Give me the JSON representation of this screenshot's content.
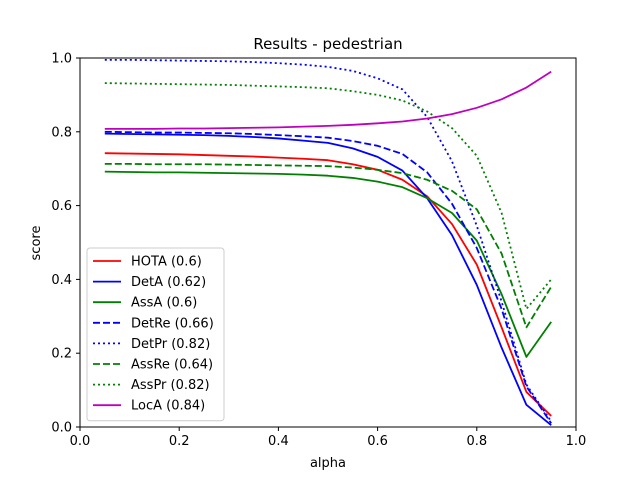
{
  "chart_data": {
    "type": "line",
    "title": "Results - pedestrian",
    "xlabel": "alpha",
    "ylabel": "score",
    "xlim": [
      0.0,
      1.0
    ],
    "ylim": [
      0.0,
      1.0
    ],
    "xticks": [
      0.0,
      0.2,
      0.4,
      0.6,
      0.8,
      1.0
    ],
    "yticks": [
      0.0,
      0.2,
      0.4,
      0.6,
      0.8,
      1.0
    ],
    "xtick_labels": [
      "0.0",
      "0.2",
      "0.4",
      "0.6",
      "0.8",
      "1.0"
    ],
    "ytick_labels": [
      "0.0",
      "0.2",
      "0.4",
      "0.6",
      "0.8",
      "1.0"
    ],
    "grid": false,
    "legend_position": "lower-left",
    "x": [
      0.05,
      0.1,
      0.15,
      0.2,
      0.25,
      0.3,
      0.35,
      0.4,
      0.45,
      0.5,
      0.55,
      0.6,
      0.65,
      0.7,
      0.75,
      0.8,
      0.85,
      0.9,
      0.95
    ],
    "series": [
      {
        "name": "HOTA (0.6)",
        "color": "#ff0000",
        "dash": "solid",
        "values": [
          0.742,
          0.741,
          0.74,
          0.739,
          0.737,
          0.735,
          0.733,
          0.73,
          0.727,
          0.723,
          0.712,
          0.697,
          0.67,
          0.625,
          0.55,
          0.44,
          0.27,
          0.095,
          0.03
        ]
      },
      {
        "name": "DetA (0.62)",
        "color": "#0000ff",
        "dash": "solid",
        "values": [
          0.795,
          0.794,
          0.793,
          0.792,
          0.791,
          0.789,
          0.786,
          0.782,
          0.776,
          0.77,
          0.755,
          0.732,
          0.695,
          0.62,
          0.52,
          0.385,
          0.215,
          0.06,
          0.005
        ]
      },
      {
        "name": "AssA (0.6)",
        "color": "#008000",
        "dash": "solid",
        "values": [
          0.692,
          0.691,
          0.69,
          0.69,
          0.689,
          0.688,
          0.687,
          0.686,
          0.684,
          0.681,
          0.675,
          0.665,
          0.65,
          0.62,
          0.58,
          0.505,
          0.36,
          0.19,
          0.285
        ]
      },
      {
        "name": "DetRe (0.66)",
        "color": "#0000ff",
        "dash": "dashed",
        "values": [
          0.8,
          0.799,
          0.798,
          0.798,
          0.797,
          0.796,
          0.794,
          0.791,
          0.788,
          0.784,
          0.775,
          0.762,
          0.74,
          0.69,
          0.605,
          0.485,
          0.32,
          0.11,
          0.01
        ]
      },
      {
        "name": "DetPr (0.82)",
        "color": "#0000ff",
        "dash": "dotted",
        "values": [
          0.995,
          0.995,
          0.994,
          0.993,
          0.992,
          0.991,
          0.989,
          0.986,
          0.982,
          0.976,
          0.965,
          0.945,
          0.915,
          0.84,
          0.72,
          0.545,
          0.34,
          0.115,
          0.015
        ]
      },
      {
        "name": "AssRe (0.64)",
        "color": "#008000",
        "dash": "dashed",
        "values": [
          0.713,
          0.713,
          0.712,
          0.712,
          0.712,
          0.711,
          0.71,
          0.709,
          0.708,
          0.707,
          0.703,
          0.697,
          0.688,
          0.67,
          0.64,
          0.59,
          0.47,
          0.27,
          0.38
        ]
      },
      {
        "name": "AssPr (0.82)",
        "color": "#008000",
        "dash": "dotted",
        "values": [
          0.932,
          0.931,
          0.93,
          0.929,
          0.928,
          0.927,
          0.925,
          0.923,
          0.921,
          0.918,
          0.91,
          0.9,
          0.885,
          0.855,
          0.81,
          0.735,
          0.58,
          0.32,
          0.4
        ]
      },
      {
        "name": "LocA (0.84)",
        "color": "#bf00bf",
        "dash": "solid",
        "values": [
          0.808,
          0.808,
          0.808,
          0.809,
          0.809,
          0.81,
          0.811,
          0.812,
          0.814,
          0.816,
          0.819,
          0.823,
          0.828,
          0.836,
          0.848,
          0.865,
          0.888,
          0.92,
          0.963
        ]
      }
    ]
  }
}
